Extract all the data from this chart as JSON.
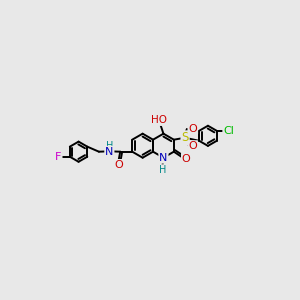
{
  "bg_color": "#e8e8e8",
  "atom_colors": {
    "C": "#000000",
    "N": "#0000bb",
    "O": "#cc0000",
    "S": "#bbbb00",
    "F": "#cc00cc",
    "Cl": "#00bb00",
    "H": "#008888"
  },
  "bond_color": "#000000",
  "bond_width": 1.4,
  "figsize": [
    3.0,
    3.0
  ],
  "dpi": 100,
  "xlim": [
    0,
    12
  ],
  "ylim": [
    0,
    10
  ]
}
